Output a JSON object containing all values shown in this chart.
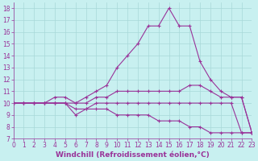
{
  "lines": [
    {
      "x": [
        0,
        1,
        2,
        3,
        4,
        5,
        6,
        7,
        8,
        9,
        10,
        11,
        12,
        13,
        14,
        15,
        16,
        17,
        18,
        19,
        20,
        21,
        22,
        23
      ],
      "y": [
        10,
        10,
        10,
        10,
        10.5,
        10.5,
        10,
        10.5,
        11,
        11.5,
        13,
        14,
        15,
        16.5,
        16.5,
        18,
        16.5,
        16.5,
        13.5,
        12,
        11,
        10.5,
        10.5,
        7.5
      ]
    },
    {
      "x": [
        0,
        1,
        2,
        3,
        4,
        5,
        6,
        7,
        8,
        9,
        10,
        11,
        12,
        13,
        14,
        15,
        16,
        17,
        18,
        19,
        20,
        21,
        22,
        23
      ],
      "y": [
        10,
        10,
        10,
        10,
        10,
        10,
        10,
        10,
        10.5,
        10.5,
        11,
        11,
        11,
        11,
        11,
        11,
        11,
        11.5,
        11.5,
        11,
        10.5,
        10.5,
        10.5,
        7.5
      ]
    },
    {
      "x": [
        0,
        1,
        2,
        3,
        4,
        5,
        6,
        7,
        8,
        9,
        10,
        11,
        12,
        13,
        14,
        15,
        16,
        17,
        18,
        19,
        20,
        21,
        22,
        23
      ],
      "y": [
        10,
        10,
        10,
        10,
        10,
        10,
        9.5,
        9.5,
        10,
        10,
        10,
        10,
        10,
        10,
        10,
        10,
        10,
        10,
        10,
        10,
        10,
        10,
        7.5,
        7.5
      ]
    },
    {
      "x": [
        0,
        1,
        2,
        3,
        4,
        5,
        6,
        7,
        8,
        9,
        10,
        11,
        12,
        13,
        14,
        15,
        16,
        17,
        18,
        19,
        20,
        21,
        22,
        23
      ],
      "y": [
        10,
        10,
        10,
        10,
        10,
        10,
        9,
        9.5,
        9.5,
        9.5,
        9,
        9,
        9,
        9,
        8.5,
        8.5,
        8.5,
        8,
        8,
        7.5,
        7.5,
        7.5,
        7.5,
        7.5
      ]
    }
  ],
  "line_color": "#993399",
  "marker": "+",
  "markersize": 3,
  "linewidth": 0.8,
  "markeredgewidth": 0.8,
  "xlim": [
    0,
    23
  ],
  "ylim": [
    7,
    18.5
  ],
  "yticks": [
    7,
    8,
    9,
    10,
    11,
    12,
    13,
    14,
    15,
    16,
    17,
    18
  ],
  "xticks": [
    0,
    1,
    2,
    3,
    4,
    5,
    6,
    7,
    8,
    9,
    10,
    11,
    12,
    13,
    14,
    15,
    16,
    17,
    18,
    19,
    20,
    21,
    22,
    23
  ],
  "xlabel": "Windchill (Refroidissement éolien,°C)",
  "bg_color": "#c8f0f0",
  "grid_color": "#a8d8d8",
  "xlabel_fontsize": 6.5,
  "tick_fontsize": 5.5
}
